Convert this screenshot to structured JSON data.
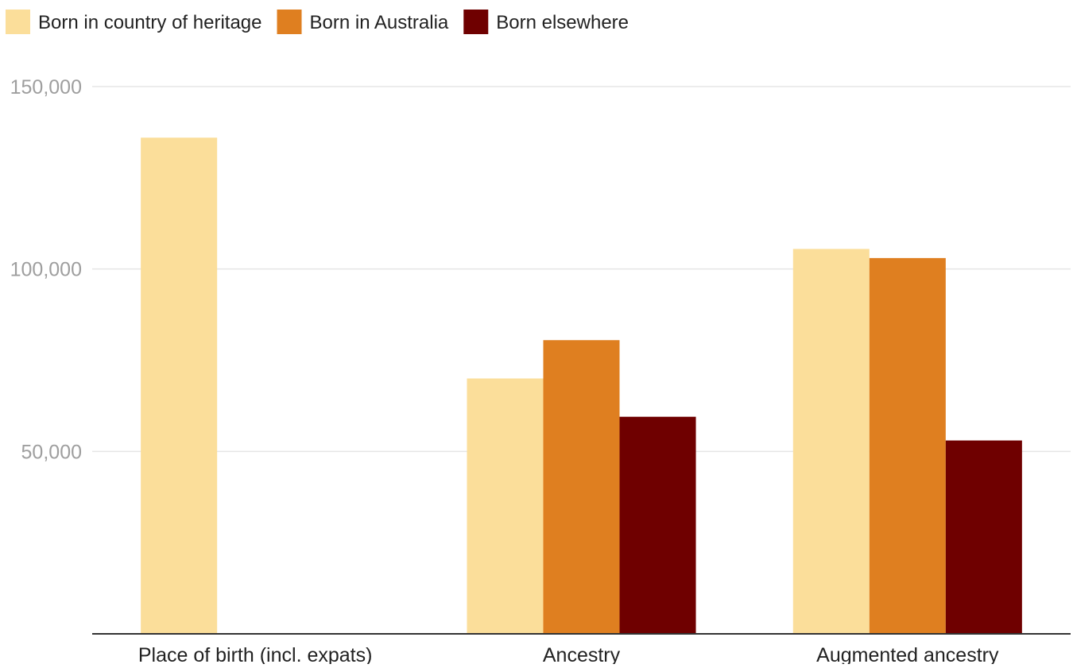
{
  "chart_data": {
    "type": "bar",
    "title": "",
    "xlabel": "",
    "ylabel": "",
    "categories": [
      "Place of birth (incl. expats)",
      "Ancestry",
      "Augmented ancestry"
    ],
    "series": [
      {
        "name": "Born in country of heritage",
        "color": "#FBDE9A",
        "values": [
          136000,
          70000,
          105500
        ]
      },
      {
        "name": "Born in Australia",
        "color": "#DF7F20",
        "values": [
          null,
          80500,
          103000
        ]
      },
      {
        "name": "Born elsewhere",
        "color": "#6F0000",
        "values": [
          null,
          59500,
          53000
        ]
      }
    ],
    "ylim": [
      0,
      150000
    ],
    "yticks": [
      {
        "value": 50000,
        "label": "50,000"
      },
      {
        "value": 100000,
        "label": "100,000"
      },
      {
        "value": 150000,
        "label": "150,000"
      }
    ],
    "grid": true,
    "legend_position": "top-left",
    "colors": {
      "gridline": "#E5E5E5",
      "axis": "#333333",
      "tick_label": "#9E9E9E",
      "text": "#222222"
    }
  }
}
